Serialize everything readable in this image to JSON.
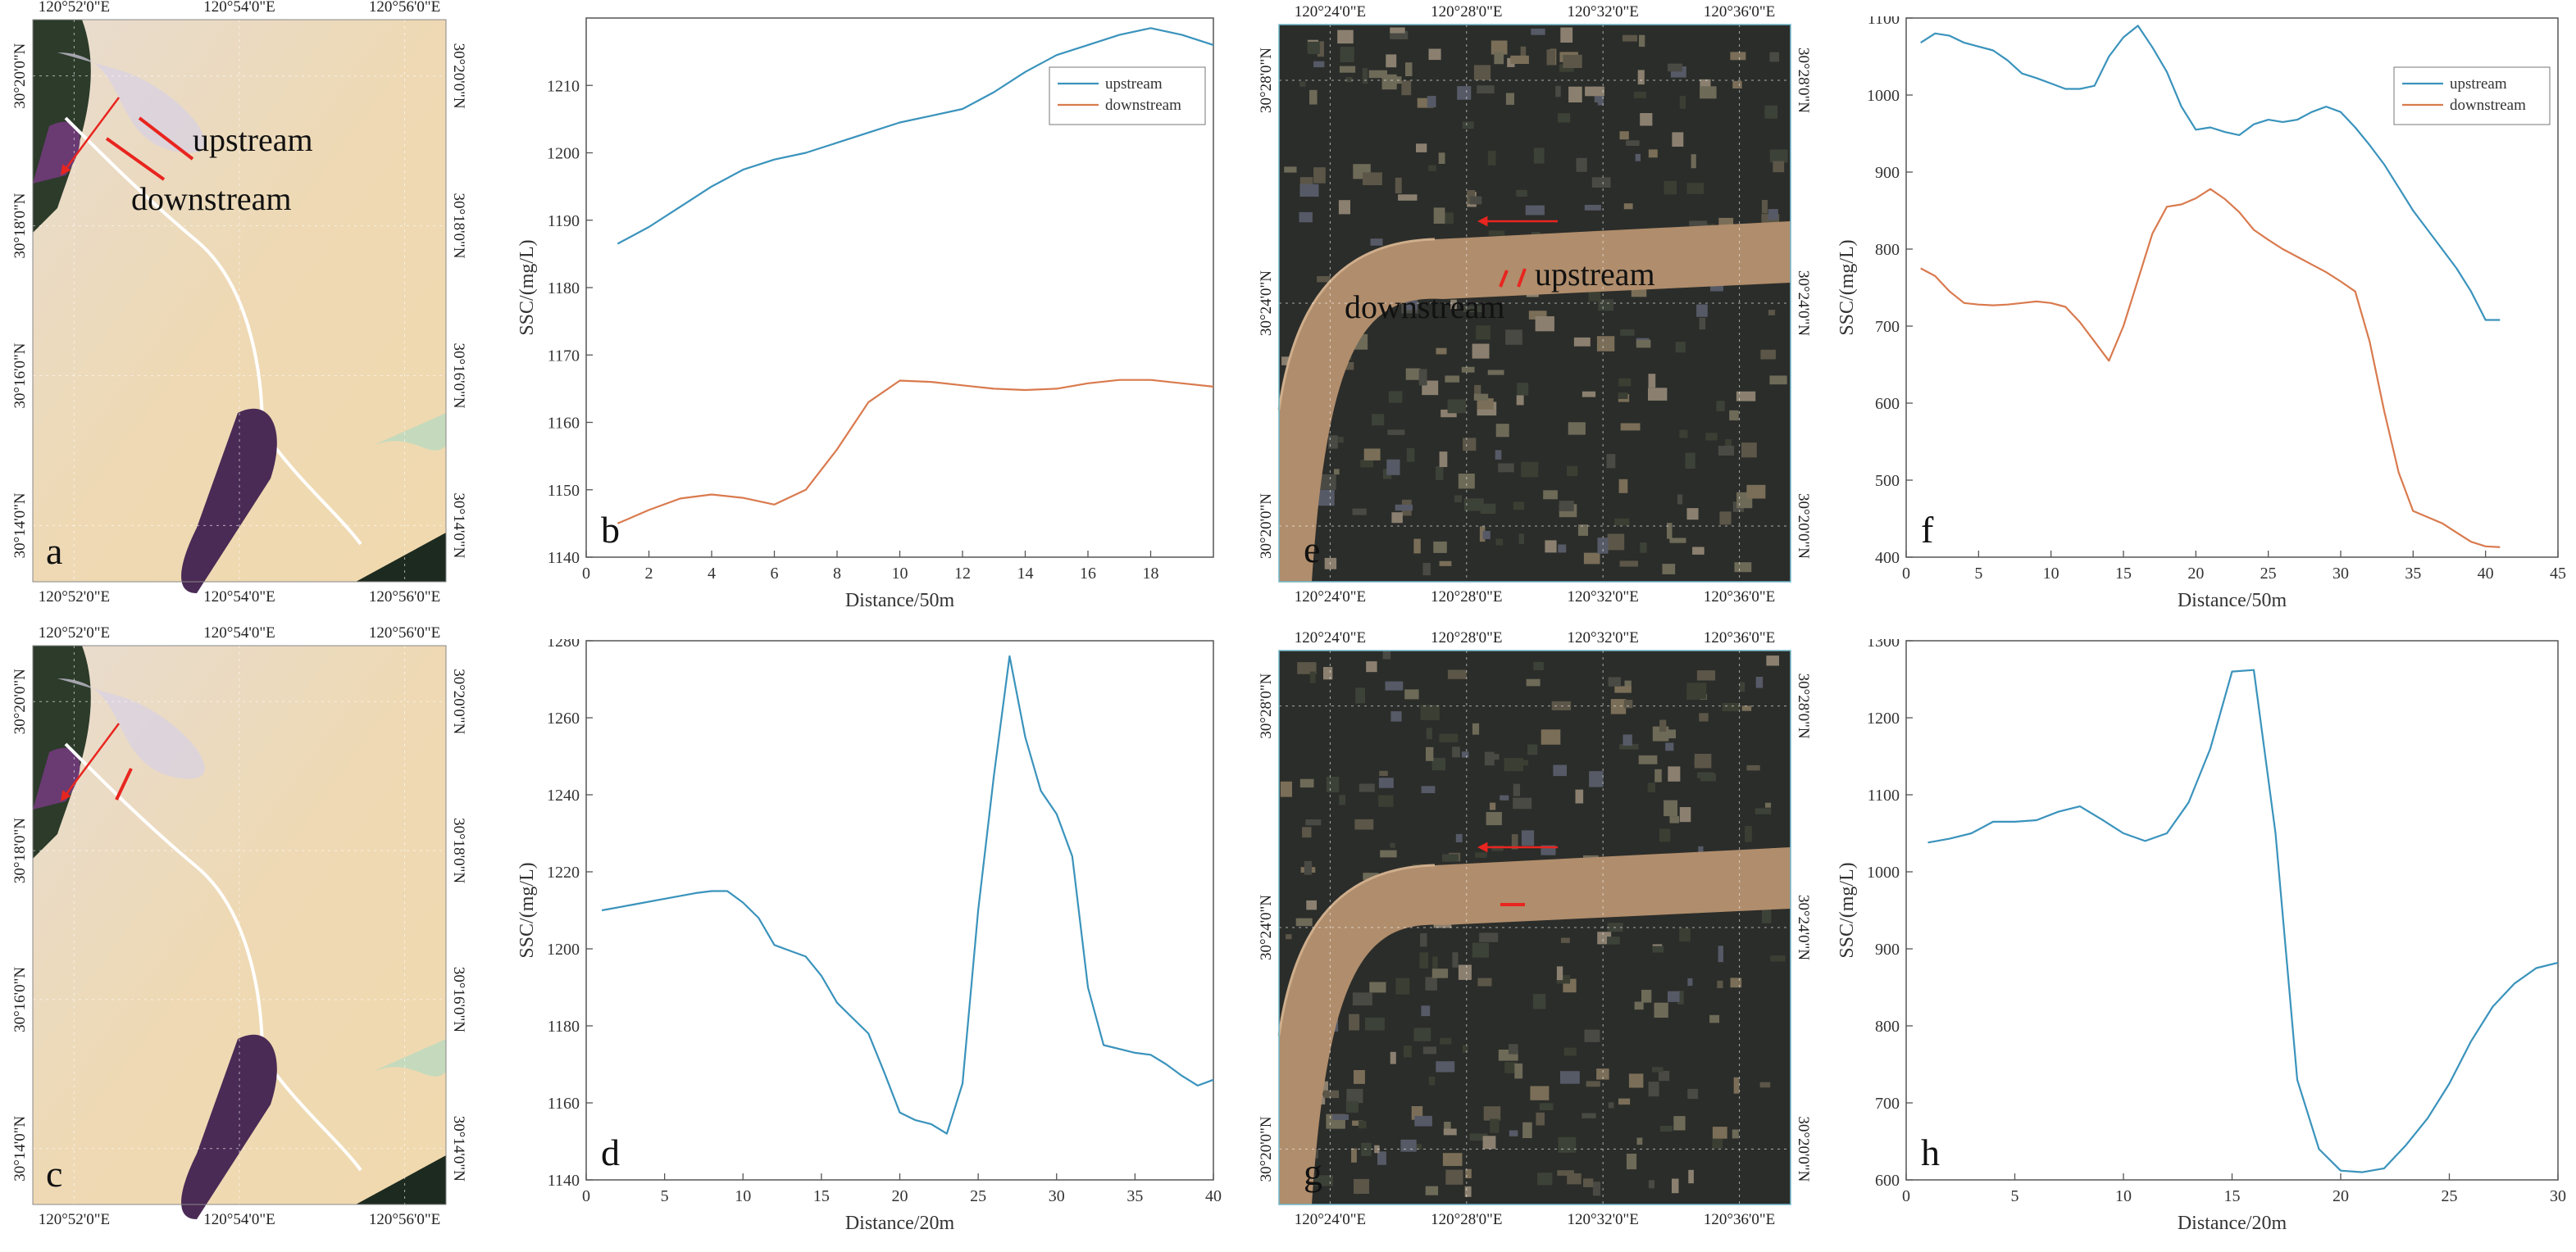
{
  "colors": {
    "upstream": "#3A93BC",
    "downstream": "#D97A4E",
    "arrow": "#E8251F",
    "axis": "#555555"
  },
  "maps": {
    "a": {
      "letter": "a",
      "top_ticks": [
        "120°52'0\"E",
        "120°54'0\"E",
        "120°56'0\"E"
      ],
      "bottom_ticks": [
        "120°52'0\"E",
        "120°54'0\"E",
        "120°56'0\"E"
      ],
      "left_ticks": [
        "30°20'0\"N",
        "30°18'0\"N",
        "30°16'0\"N",
        "30°14'0\"N"
      ],
      "right_ticks": [
        "30°20'0\"N",
        "30°18'0\"N",
        "30°16'0\"N",
        "30°14'0\"N"
      ],
      "labels": {
        "upstream": "upstream",
        "downstream": "downstream"
      }
    },
    "c": {
      "letter": "c",
      "top_ticks": [
        "120°52'0\"E",
        "120°54'0\"E",
        "120°56'0\"E"
      ],
      "bottom_ticks": [
        "120°52'0\"E",
        "120°54'0\"E",
        "120°56'0\"E"
      ],
      "left_ticks": [
        "30°20'0\"N",
        "30°18'0\"N",
        "30°16'0\"N",
        "30°14'0\"N"
      ],
      "right_ticks": [
        "30°20'0\"N",
        "30°18'0\"N",
        "30°16'0\"N",
        "30°14'0\"N"
      ]
    },
    "e": {
      "letter": "e",
      "top_ticks": [
        "120°24'0\"E",
        "120°28'0\"E",
        "120°32'0\"E",
        "120°36'0\"E"
      ],
      "bottom_ticks": [
        "120°24'0\"E",
        "120°28'0\"E",
        "120°32'0\"E",
        "120°36'0\"E"
      ],
      "left_ticks": [
        "30°28'0\"N",
        "30°24'0\"N",
        "30°20'0\"N"
      ],
      "right_ticks": [
        "30°28'0\"N",
        "30°24'0\"N",
        "30°20'0\"N"
      ],
      "labels": {
        "upstream": "upstream",
        "downstream": "downstream"
      }
    },
    "g": {
      "letter": "g",
      "top_ticks": [
        "120°24'0\"E",
        "120°28'0\"E",
        "120°32'0\"E",
        "120°36'0\"E"
      ],
      "bottom_ticks": [
        "120°24'0\"E",
        "120°28'0\"E",
        "120°32'0\"E",
        "120°36'0\"E"
      ],
      "left_ticks": [
        "30°28'0\"N",
        "30°24'0\"N",
        "30°20'0\"N"
      ],
      "right_ticks": [
        "30°28'0\"N",
        "30°24'0\"N",
        "30°20'0\"N"
      ]
    }
  },
  "chart_data": [
    {
      "id": "b",
      "type": "line",
      "letter": "b",
      "xlabel": "Distance/50m",
      "ylabel": "SSC/(mg/L)",
      "xlim": [
        0,
        20
      ],
      "ylim": [
        1140,
        1220
      ],
      "xticks": [
        0,
        2,
        4,
        6,
        8,
        10,
        12,
        14,
        16,
        18
      ],
      "yticks": [
        1140,
        1150,
        1160,
        1170,
        1180,
        1190,
        1200,
        1210
      ],
      "legend": "top-right",
      "series": [
        {
          "name": "upstream",
          "color_key": "upstream",
          "x": [
            1,
            2,
            3,
            4,
            5,
            6,
            7,
            8,
            9,
            10,
            11,
            12,
            13,
            14,
            15,
            16,
            17,
            18,
            19,
            20
          ],
          "y": [
            1186.5,
            1189,
            1192,
            1195,
            1197.5,
            1199,
            1200,
            1201.5,
            1203,
            1204.5,
            1205.5,
            1206.5,
            1209,
            1212,
            1214.5,
            1216,
            1217.5,
            1218.5,
            1217.5,
            1216
          ]
        },
        {
          "name": "downstream",
          "color_key": "downstream",
          "x": [
            1,
            2,
            3,
            4,
            5,
            6,
            7,
            8,
            9,
            10,
            11,
            12,
            13,
            14,
            15,
            16,
            17,
            18,
            19,
            20
          ],
          "y": [
            1145,
            1147,
            1148.7,
            1149.3,
            1148.8,
            1147.8,
            1150,
            1156,
            1163,
            1166.2,
            1166,
            1165.5,
            1165,
            1164.8,
            1165,
            1165.8,
            1166.3,
            1166.3,
            1165.8,
            1165.3
          ]
        }
      ]
    },
    {
      "id": "d",
      "type": "line",
      "letter": "d",
      "xlabel": "Distance/20m",
      "ylabel": "SSC/(mg/L)",
      "xlim": [
        0,
        40
      ],
      "ylim": [
        1140,
        1280
      ],
      "xticks": [
        0,
        5,
        10,
        15,
        20,
        25,
        30,
        35,
        40
      ],
      "yticks": [
        1140,
        1160,
        1180,
        1200,
        1220,
        1240,
        1260,
        1280
      ],
      "series": [
        {
          "color_key": "upstream",
          "x": [
            1,
            3,
            5,
            7,
            8,
            9,
            10,
            11,
            12,
            13,
            14,
            15,
            16,
            17,
            18,
            19,
            20,
            21,
            22,
            23,
            24,
            25,
            26,
            27,
            28,
            29,
            30,
            31,
            32,
            33,
            34,
            35,
            36,
            37,
            38,
            39,
            40
          ],
          "y": [
            1210,
            1211.5,
            1213,
            1214.5,
            1215,
            1215,
            1212,
            1208,
            1201,
            1199.5,
            1198,
            1193,
            1186,
            1182,
            1178,
            1168,
            1157.5,
            1155.5,
            1154.5,
            1152,
            1165,
            1210,
            1245,
            1276,
            1255,
            1241,
            1235,
            1224,
            1190,
            1175,
            1174,
            1173,
            1172.5,
            1170,
            1167,
            1164.5,
            1166
          ]
        }
      ]
    },
    {
      "id": "f",
      "type": "line",
      "letter": "f",
      "xlabel": "Distance/50m",
      "ylabel": "SSC/(mg/L)",
      "xlim": [
        0,
        45
      ],
      "ylim": [
        400,
        1100
      ],
      "xticks": [
        0,
        5,
        10,
        15,
        20,
        25,
        30,
        35,
        40,
        45
      ],
      "yticks": [
        400,
        500,
        600,
        700,
        800,
        900,
        1000,
        1100
      ],
      "legend": "top-right",
      "series": [
        {
          "name": "upstream",
          "color_key": "upstream",
          "x": [
            1,
            2,
            3,
            4,
            5,
            6,
            7,
            8,
            9,
            10,
            11,
            12,
            13,
            14,
            15,
            16,
            17,
            18,
            19,
            20,
            21,
            22,
            23,
            24,
            25,
            26,
            27,
            28,
            29,
            30,
            31,
            32,
            33,
            34,
            35,
            36,
            37,
            38,
            39,
            40,
            41
          ],
          "y": [
            1068,
            1080,
            1077,
            1068,
            1063,
            1058,
            1045,
            1028,
            1022,
            1015,
            1008,
            1008,
            1012,
            1050,
            1075,
            1090,
            1062,
            1030,
            985,
            955,
            958,
            952,
            948,
            962,
            968,
            965,
            968,
            978,
            985,
            978,
            958,
            935,
            910,
            880,
            850,
            825,
            800,
            775,
            745,
            708,
            708
          ]
        },
        {
          "name": "downstream",
          "color_key": "downstream",
          "x": [
            1,
            2,
            3,
            4,
            5,
            6,
            7,
            8,
            9,
            10,
            11,
            12,
            13,
            14,
            15,
            16,
            17,
            18,
            19,
            20,
            21,
            22,
            23,
            24,
            25,
            26,
            27,
            28,
            29,
            30,
            31,
            32,
            33,
            34,
            35,
            36,
            37,
            38,
            39,
            40,
            41
          ],
          "y": [
            775,
            765,
            745,
            730,
            728,
            727,
            728,
            730,
            732,
            730,
            725,
            705,
            680,
            655,
            700,
            760,
            820,
            855,
            858,
            866,
            878,
            865,
            848,
            825,
            812,
            800,
            790,
            780,
            770,
            758,
            745,
            680,
            590,
            510,
            460,
            452,
            444,
            432,
            420,
            414,
            413
          ]
        }
      ]
    },
    {
      "id": "h",
      "type": "line",
      "letter": "h",
      "xlabel": "Distance/20m",
      "ylabel": "SSC/(mg/L)",
      "xlim": [
        0,
        30
      ],
      "ylim": [
        600,
        1300
      ],
      "xticks": [
        0,
        5,
        10,
        15,
        20,
        25,
        30
      ],
      "yticks": [
        600,
        700,
        800,
        900,
        1000,
        1100,
        1200,
        1300
      ],
      "series": [
        {
          "color_key": "upstream",
          "x": [
            1,
            2,
            3,
            4,
            5,
            6,
            7,
            8,
            9,
            10,
            11,
            12,
            13,
            14,
            15,
            16,
            17,
            18,
            19,
            20,
            21,
            22,
            23,
            24,
            25,
            26,
            27,
            28,
            29,
            30
          ],
          "y": [
            1038,
            1043,
            1050,
            1065,
            1065,
            1067,
            1078,
            1085,
            1068,
            1050,
            1040,
            1050,
            1090,
            1160,
            1260,
            1262,
            1050,
            730,
            640,
            612,
            610,
            615,
            645,
            680,
            725,
            780,
            825,
            855,
            875,
            882
          ]
        }
      ]
    }
  ]
}
